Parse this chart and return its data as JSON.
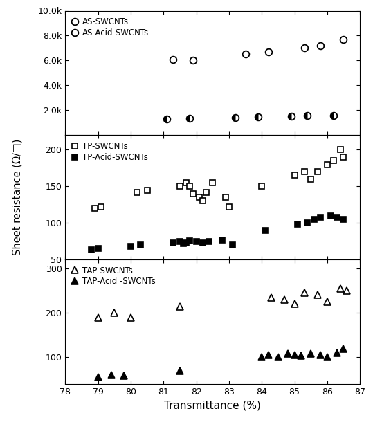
{
  "xlabel": "Transmittance (%)",
  "ylabel": "Sheet resistance (Ω/□)",
  "xlim": [
    78,
    87
  ],
  "xticks": [
    78,
    79,
    80,
    81,
    82,
    83,
    84,
    85,
    86,
    87
  ],
  "AS_open_x": [
    81.3,
    81.9,
    83.5,
    84.2,
    85.3,
    85.8,
    86.5
  ],
  "AS_open_y": [
    6100,
    6050,
    6500,
    6700,
    7000,
    7200,
    7700
  ],
  "AS_filled_x": [
    81.1,
    81.8,
    83.2,
    83.9,
    84.9,
    85.4,
    86.2
  ],
  "AS_filled_y": [
    1300,
    1350,
    1400,
    1450,
    1500,
    1550,
    1600
  ],
  "TP_open_x": [
    78.9,
    79.1,
    80.2,
    80.5,
    81.5,
    81.7,
    81.8,
    81.9,
    82.1,
    82.2,
    82.3,
    82.5,
    82.9,
    83.0,
    84.0,
    85.0,
    85.3,
    85.5,
    85.7,
    86.0,
    86.2,
    86.4,
    86.5
  ],
  "TP_open_y": [
    120,
    122,
    142,
    145,
    150,
    155,
    150,
    140,
    135,
    130,
    142,
    155,
    135,
    122,
    150,
    165,
    170,
    160,
    170,
    180,
    185,
    200,
    190
  ],
  "TP_filled_x": [
    78.8,
    79.0,
    80.0,
    80.3,
    81.3,
    81.5,
    81.6,
    81.7,
    81.8,
    82.0,
    82.2,
    82.4,
    82.8,
    83.1,
    84.1,
    85.1,
    85.4,
    85.6,
    85.8,
    86.1,
    86.3,
    86.5
  ],
  "TP_filled_y": [
    63,
    65,
    68,
    70,
    73,
    75,
    72,
    73,
    76,
    75,
    73,
    75,
    77,
    70,
    90,
    98,
    100,
    105,
    108,
    110,
    108,
    105
  ],
  "TAP_open_x": [
    79.0,
    79.5,
    80.0,
    81.5,
    84.3,
    84.7,
    85.0,
    85.3,
    85.7,
    86.0,
    86.4,
    86.6
  ],
  "TAP_open_y": [
    190,
    200,
    190,
    215,
    235,
    230,
    220,
    245,
    240,
    225,
    255,
    250
  ],
  "TAP_filled_x": [
    79.0,
    79.4,
    79.8,
    81.5,
    84.0,
    84.2,
    84.5,
    84.8,
    85.0,
    85.2,
    85.5,
    85.8,
    86.0,
    86.3,
    86.5
  ],
  "TAP_filled_y": [
    55,
    60,
    58,
    70,
    100,
    105,
    100,
    108,
    105,
    103,
    108,
    105,
    100,
    110,
    120
  ],
  "AS_ylim": [
    0,
    10000
  ],
  "AS_yticks": [
    2000,
    4000,
    6000,
    8000,
    10000
  ],
  "AS_yticklabels": [
    "2.0k",
    "4.0k",
    "6.0k",
    "8.0k",
    "10.0k"
  ],
  "TP_ylim": [
    50,
    220
  ],
  "TP_yticks": [
    50,
    100,
    150,
    200
  ],
  "TP_yticklabels": [
    "50",
    "100",
    "150",
    "200"
  ],
  "TAP_ylim": [
    40,
    320
  ],
  "TAP_yticks": [
    100,
    200,
    300
  ],
  "TAP_yticklabels": [
    "100",
    "200",
    "300"
  ],
  "ms": 7,
  "lw": 1.3
}
